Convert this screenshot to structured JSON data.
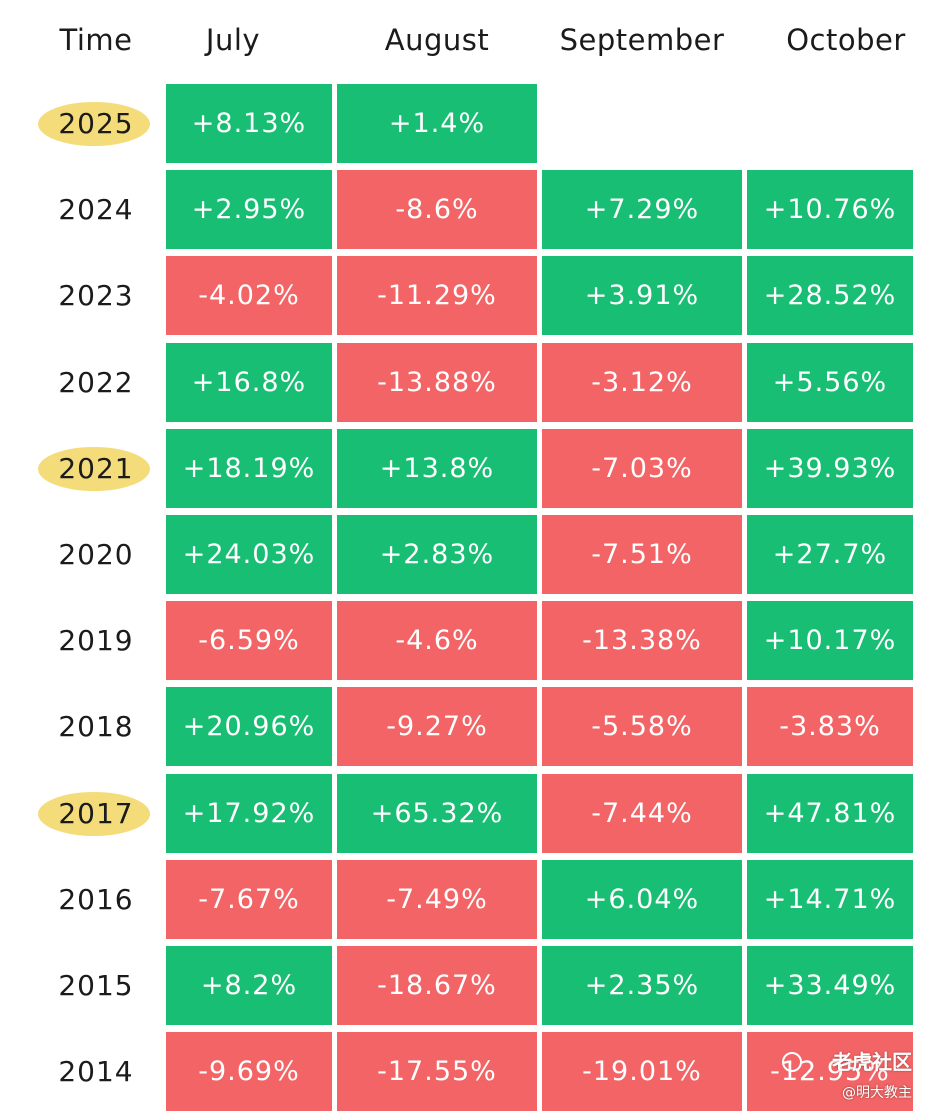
{
  "chart_data": {
    "type": "table",
    "title": "",
    "header_time": "Time",
    "columns": [
      "July",
      "August",
      "September",
      "October"
    ],
    "rows": [
      {
        "year": "2025",
        "highlighted": true,
        "values": [
          "+8.13%",
          "+1.4%",
          "",
          ""
        ]
      },
      {
        "year": "2024",
        "highlighted": false,
        "values": [
          "+2.95%",
          "-8.6%",
          "+7.29%",
          "+10.76%"
        ]
      },
      {
        "year": "2023",
        "highlighted": false,
        "values": [
          "-4.02%",
          "-11.29%",
          "+3.91%",
          "+28.52%"
        ]
      },
      {
        "year": "2022",
        "highlighted": false,
        "values": [
          "+16.8%",
          "-13.88%",
          "-3.12%",
          "+5.56%"
        ]
      },
      {
        "year": "2021",
        "highlighted": true,
        "values": [
          "+18.19%",
          "+13.8%",
          "-7.03%",
          "+39.93%"
        ]
      },
      {
        "year": "2020",
        "highlighted": false,
        "values": [
          "+24.03%",
          "+2.83%",
          "-7.51%",
          "+27.7%"
        ]
      },
      {
        "year": "2019",
        "highlighted": false,
        "values": [
          "-6.59%",
          "-4.6%",
          "-13.38%",
          "+10.17%"
        ]
      },
      {
        "year": "2018",
        "highlighted": false,
        "values": [
          "+20.96%",
          "-9.27%",
          "-5.58%",
          "-3.83%"
        ]
      },
      {
        "year": "2017",
        "highlighted": true,
        "values": [
          "+17.92%",
          "+65.32%",
          "-7.44%",
          "+47.81%"
        ]
      },
      {
        "year": "2016",
        "highlighted": false,
        "values": [
          "-7.67%",
          "-7.49%",
          "+6.04%",
          "+14.71%"
        ]
      },
      {
        "year": "2015",
        "highlighted": false,
        "values": [
          "+8.2%",
          "-18.67%",
          "+2.35%",
          "+33.49%"
        ]
      },
      {
        "year": "2014",
        "highlighted": false,
        "values": [
          "-9.69%",
          "-17.55%",
          "-19.01%",
          "-12.95%"
        ]
      }
    ],
    "colors": {
      "positive": "#18be73",
      "negative": "#f26465",
      "year_highlight": "#f4dc7a"
    }
  },
  "watermark": {
    "title": "老虎社区",
    "handle": "@明大教主",
    "logo_icon": "tiger-logo-icon"
  }
}
